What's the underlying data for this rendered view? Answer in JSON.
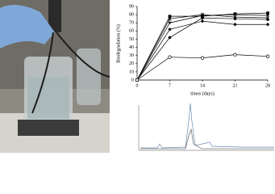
{
  "chart_data": {
    "type": "line",
    "xlabel": "times (days)",
    "ylabel": "Biodegradation (%)",
    "x": [
      0,
      7,
      14,
      21,
      28
    ],
    "xlim": [
      0,
      28
    ],
    "xticks": [
      0,
      7,
      14,
      21,
      28
    ],
    "ylim": [
      0,
      90
    ],
    "yticks": [
      0,
      10,
      20,
      30,
      40,
      50,
      60,
      70,
      80,
      90
    ],
    "series": [
      {
        "color": "#000000",
        "marker": "square",
        "values": [
          0,
          78,
          78,
          81,
          82
        ]
      },
      {
        "color": "#000000",
        "marker": "triangle",
        "values": [
          0,
          70,
          79,
          80,
          79
        ]
      },
      {
        "color": "#000000",
        "marker": "star",
        "values": [
          0,
          75,
          80,
          77,
          76
        ]
      },
      {
        "color": "#000000",
        "marker": "diamond",
        "values": [
          0,
          62,
          72,
          68,
          68
        ]
      },
      {
        "color": "#000000",
        "marker": "circle",
        "values": [
          0,
          52,
          76,
          75,
          74
        ]
      },
      {
        "color": "#000000",
        "marker": "open-circle",
        "values": [
          0,
          28,
          27,
          31,
          29
        ]
      }
    ]
  }
}
